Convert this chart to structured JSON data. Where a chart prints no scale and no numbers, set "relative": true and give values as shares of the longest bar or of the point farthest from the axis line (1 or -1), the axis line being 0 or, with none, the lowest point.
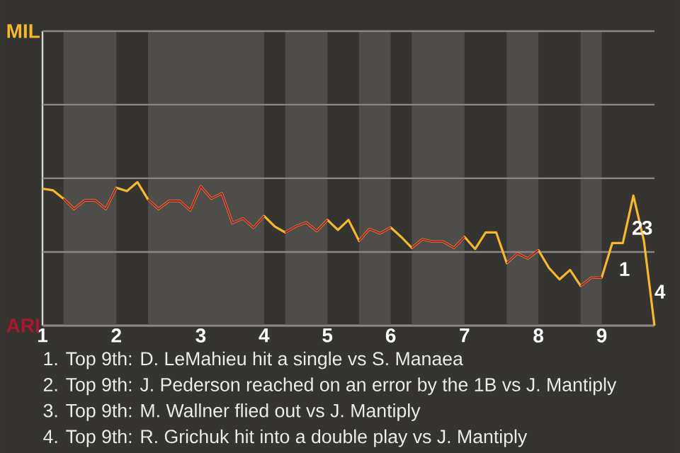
{
  "chart_data": {
    "type": "line",
    "relative": true,
    "categories": [
      "1",
      null,
      null,
      null,
      null,
      null,
      null,
      "2",
      null,
      null,
      null,
      null,
      null,
      null,
      null,
      "3",
      null,
      null,
      null,
      null,
      null,
      "4",
      null,
      null,
      null,
      null,
      null,
      "5",
      null,
      null,
      null,
      null,
      null,
      "6",
      null,
      null,
      null,
      null,
      null,
      null,
      "7",
      null,
      null,
      null,
      null,
      null,
      null,
      "8",
      null,
      null,
      null,
      null,
      null,
      "9",
      null,
      null,
      null,
      null,
      null
    ],
    "series": [
      {
        "color": "#f5b82e",
        "values": [
          0.955,
          0.943,
          0.885,
          0.813,
          0.873,
          0.873,
          0.813,
          0.961,
          0.938,
          1,
          0.879,
          0.813,
          0.869,
          0.869,
          0.803,
          0.971,
          0.885,
          0.922,
          0.715,
          0.747,
          0.682,
          0.764,
          0.692,
          0.649,
          0.692,
          0.719,
          0.659,
          0.737,
          0.667,
          0.737,
          0.591,
          0.674,
          0.643,
          0.684,
          0.618,
          0.542,
          0.602,
          0.585,
          0.585,
          0.542,
          0.618,
          0.534,
          0.649,
          0.649,
          0.435,
          0.503,
          0.468,
          0.526,
          0.402,
          0.322,
          0.388,
          0.277,
          0.333,
          0.335,
          0.575,
          0.575,
          0.906,
          0.591,
          0
        ]
      },
      {
        "color": "#a8182e",
        "values": [
          null,
          null,
          0.885,
          0.813,
          0.873,
          0.873,
          0.813,
          0.961,
          null,
          null,
          0.879,
          0.813,
          0.869,
          0.869,
          0.803,
          0.971,
          0.885,
          0.922,
          0.715,
          0.747,
          0.682,
          0.764,
          null,
          0.649,
          0.692,
          0.719,
          0.659,
          0.737,
          null,
          null,
          0.591,
          0.674,
          0.643,
          0.684,
          null,
          0.542,
          0.602,
          0.585,
          0.585,
          0.542,
          0.618,
          null,
          null,
          null,
          0.435,
          0.503,
          0.468,
          0.526,
          null,
          null,
          null,
          0.277,
          0.333,
          0.335,
          null,
          null,
          null,
          null,
          null
        ]
      }
    ],
    "ref_lines": [
      {
        "axis": "y",
        "value": 0,
        "label": "ARI",
        "color": "#8a8886"
      },
      {
        "axis": "y",
        "value": 0.513,
        "color": "#8a8886"
      },
      {
        "axis": "y",
        "value": 1.027,
        "color": "#8a8886"
      },
      {
        "axis": "y",
        "value": 1.54,
        "color": "#8a8886"
      },
      {
        "axis": "y",
        "value": 2.053,
        "label": "MIL",
        "color": "#8a8886"
      }
    ],
    "annotations": [
      "1",
      "2",
      "3",
      "4",
      "1. Top 9th: D. LeMahieu hit a single vs S. Manaea",
      "2. Top 9th: J. Pederson reached on an error by the 1B vs J. Mantiply",
      "3. Top 9th: M. Wallner flied out vs J. Mantiply",
      "4. Top 9th: R. Grichuk hit into a double play vs J. Mantiply"
    ]
  }
}
